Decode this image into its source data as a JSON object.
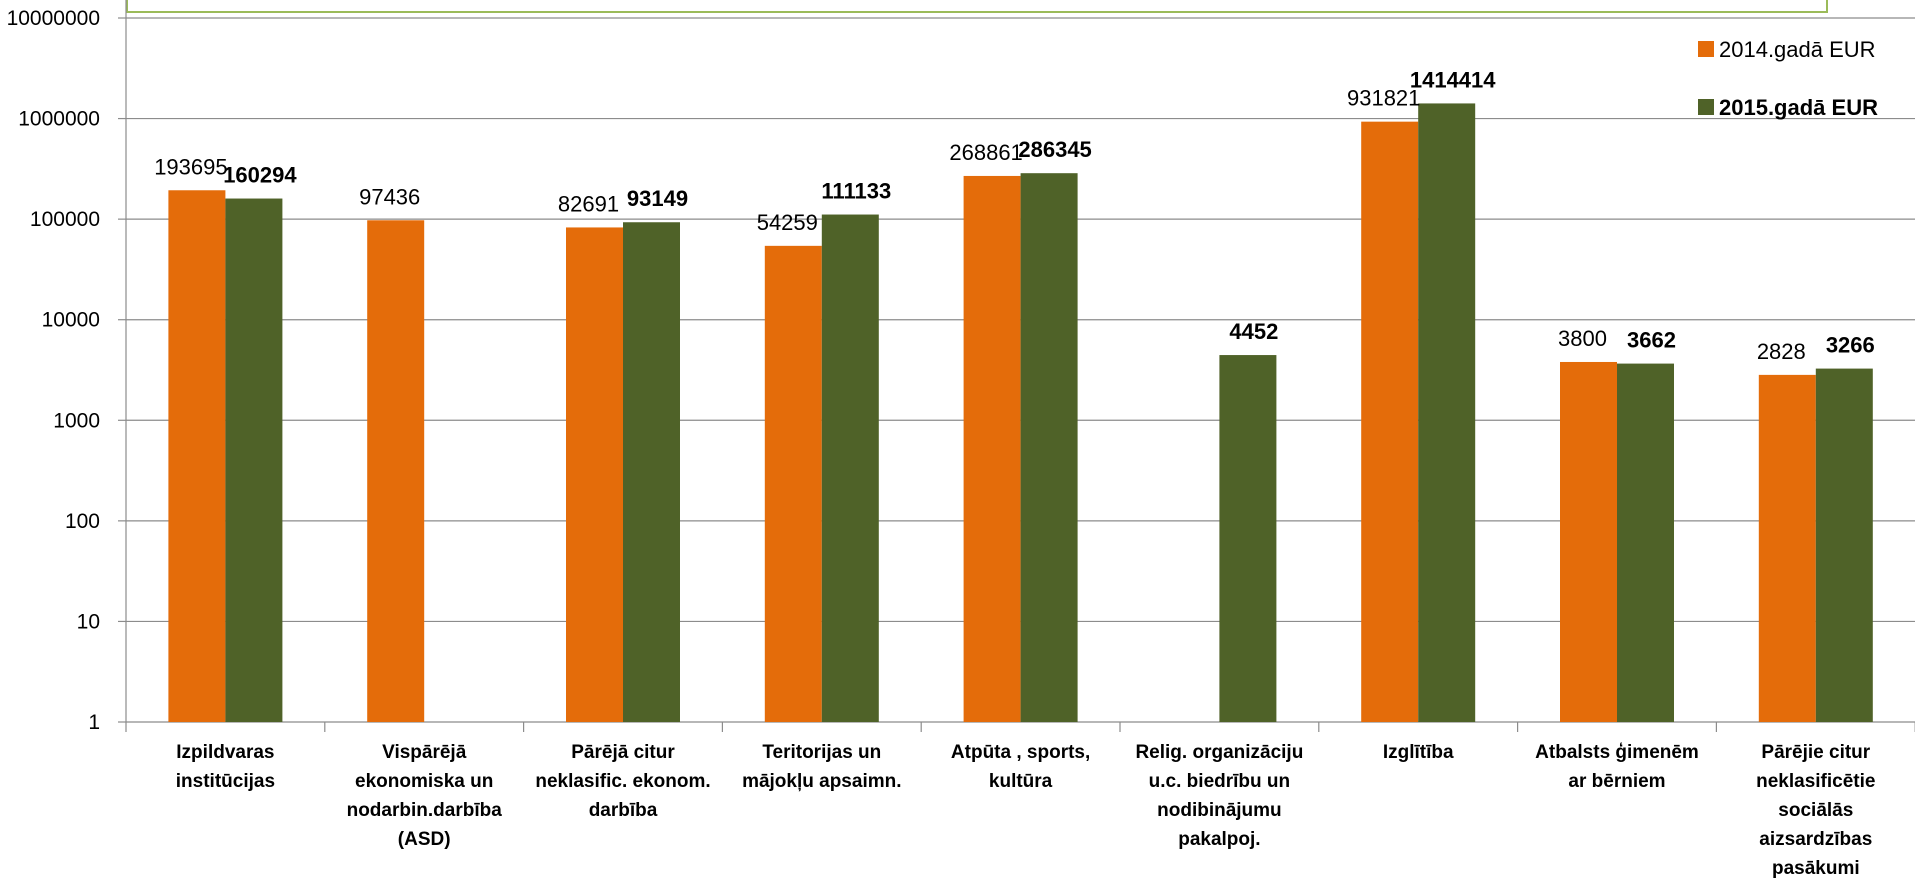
{
  "chart_data": {
    "type": "bar",
    "y_scale": "log",
    "ylim": [
      1,
      10000000
    ],
    "y_ticks": [
      "1",
      "10",
      "100",
      "1000",
      "10000",
      "100000",
      "1000000",
      "10000000"
    ],
    "grid": true,
    "legend_position": "top-right",
    "categories": [
      [
        "Izpildvaras",
        "institūcijas"
      ],
      [
        "Vispārējā",
        "ekonomiska un",
        "nodarbin.darbība",
        "(ASD)"
      ],
      [
        "Pārējā citur",
        "neklasific. ekonom.",
        "darbība"
      ],
      [
        "Teritorijas un",
        "mājokļu apsaimn."
      ],
      [
        "Atpūta , sports,",
        "kultūra"
      ],
      [
        "Relig. organizāciju",
        "u.c. biedrību un",
        "nodibinājumu",
        "pakalpoj."
      ],
      [
        "Izglītība"
      ],
      [
        "Atbalsts ģimenēm",
        "ar bērniem"
      ],
      [
        "Pārējie citur",
        "neklasificētie",
        "sociālās",
        "aizsardzības",
        "pasākumi"
      ]
    ],
    "series": [
      {
        "name": "2014.gadā EUR",
        "color": "#E46C0A",
        "bold_labels": false,
        "values": [
          193695,
          97436,
          82691,
          54259,
          268861,
          null,
          931821,
          3800,
          2828
        ],
        "labels": [
          "193695",
          "97436",
          "82691",
          "54259",
          "268861",
          "",
          "931821",
          "3800",
          "2828"
        ]
      },
      {
        "name": "2015.gadā EUR",
        "color": "#4F6228",
        "bold_labels": true,
        "values": [
          160294,
          null,
          93149,
          111133,
          286345,
          4452,
          1414414,
          3662,
          3266
        ],
        "labels": [
          "160294",
          "",
          "93149",
          "111133",
          "286345",
          "4452",
          "1414414",
          "3662",
          "3266"
        ]
      }
    ]
  }
}
